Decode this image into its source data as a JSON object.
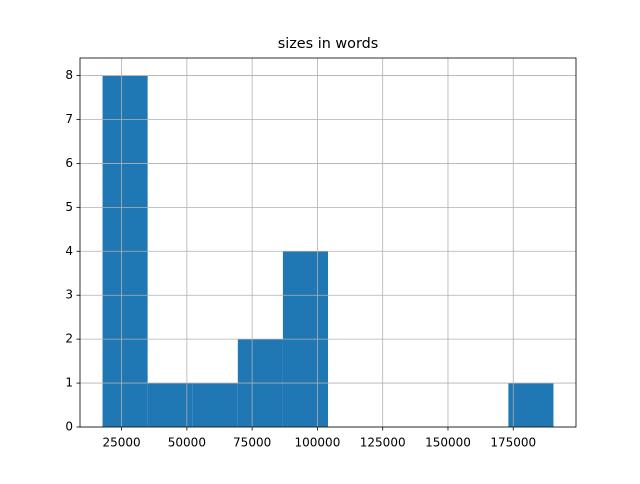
{
  "chart_data": {
    "type": "histogram",
    "title": "sizes in words",
    "bins": [
      17700,
      34970,
      52240,
      69510,
      86780,
      104050,
      121320,
      138590,
      155860,
      173130,
      190400
    ],
    "values": [
      8,
      1,
      1,
      2,
      4,
      0,
      0,
      0,
      0,
      1
    ],
    "color": "#1f77b4",
    "xlim": [
      9065,
      199035
    ],
    "xticks": [
      25000,
      50000,
      75000,
      100000,
      125000,
      150000,
      175000
    ],
    "ylim": [
      0,
      8.4
    ],
    "yticks": [
      0,
      1,
      2,
      3,
      4,
      5,
      6,
      7,
      8
    ],
    "grid": true
  }
}
